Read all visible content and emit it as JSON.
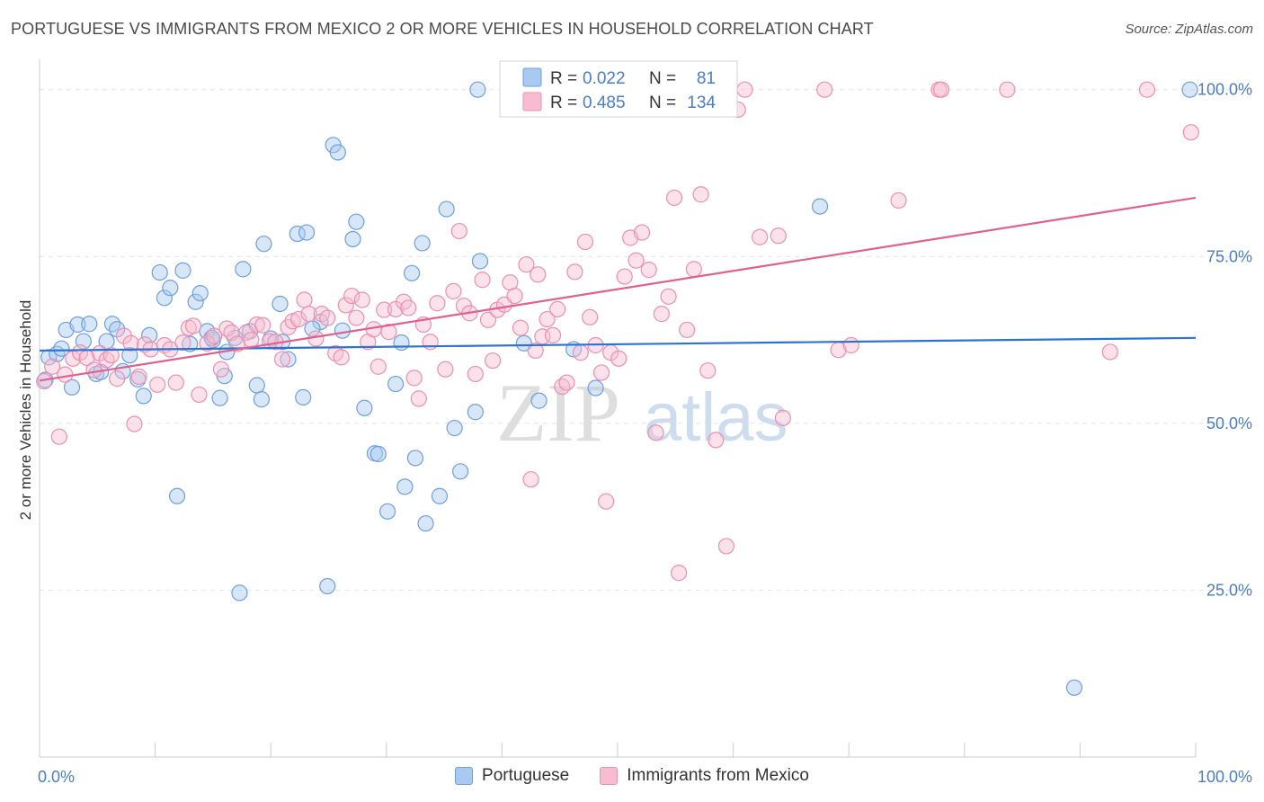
{
  "title": "PORTUGUESE VS IMMIGRANTS FROM MEXICO 2 OR MORE VEHICLES IN HOUSEHOLD CORRELATION CHART",
  "source": "Source: ZipAtlas.com",
  "watermark": {
    "zip": "ZIP",
    "atlas": "atlas"
  },
  "colors": {
    "blue_fill": "#a9c9f0",
    "blue_stroke": "#6f9fdc",
    "blue_line": "#2e72d2",
    "pink_fill": "#f7bcd0",
    "pink_stroke": "#ec8fb0",
    "pink_line": "#e0608f",
    "value_text": "#4a7cc9",
    "grid": "#e2e2e2"
  },
  "stats_legend": [
    {
      "r_label": "R =",
      "r_value": "0.022",
      "n_label": "N =",
      "n_value": "81"
    },
    {
      "r_label": "R =",
      "r_value": "0.485",
      "n_label": "N =",
      "n_value": "134"
    }
  ],
  "chart_data": {
    "type": "scatter",
    "xlabel": "",
    "ylabel": "2 or more Vehicles in Household",
    "xlim": [
      0,
      100
    ],
    "ylim": [
      0,
      104
    ],
    "x_tick_labels": [
      "0.0%",
      "100.0%"
    ],
    "y_ticks": [
      25,
      50,
      75,
      100
    ],
    "y_tick_labels": [
      "25.0%",
      "50.0%",
      "75.0%",
      "100.0%"
    ],
    "grid": true,
    "legend_position": "top-center",
    "series": [
      {
        "name": "Portuguese",
        "color": "blue",
        "trend": [
          [
            0,
            60.9
          ],
          [
            100,
            62.8
          ]
        ],
        "points": [
          [
            0.5,
            56.5
          ],
          [
            0.8,
            59.9
          ],
          [
            1.5,
            60.4
          ],
          [
            1.9,
            61.2
          ],
          [
            2.3,
            64.0
          ],
          [
            2.8,
            55.4
          ],
          [
            3.3,
            64.8
          ],
          [
            3.8,
            62.3
          ],
          [
            4.3,
            64.9
          ],
          [
            4.9,
            57.4
          ],
          [
            5.3,
            57.7
          ],
          [
            5.8,
            62.3
          ],
          [
            6.3,
            64.9
          ],
          [
            6.7,
            64.1
          ],
          [
            7.2,
            57.8
          ],
          [
            7.8,
            60.2
          ],
          [
            8.5,
            56.6
          ],
          [
            9.0,
            54.1
          ],
          [
            9.5,
            63.2
          ],
          [
            10.4,
            72.6
          ],
          [
            10.8,
            68.8
          ],
          [
            11.3,
            70.3
          ],
          [
            11.9,
            39.1
          ],
          [
            12.4,
            72.9
          ],
          [
            13.0,
            61.9
          ],
          [
            13.5,
            68.2
          ],
          [
            13.9,
            69.5
          ],
          [
            14.5,
            63.8
          ],
          [
            15.0,
            62.5
          ],
          [
            15.6,
            53.8
          ],
          [
            16.0,
            57.1
          ],
          [
            16.2,
            60.7
          ],
          [
            16.9,
            62.8
          ],
          [
            17.3,
            24.6
          ],
          [
            17.6,
            73.1
          ],
          [
            18.2,
            63.8
          ],
          [
            18.8,
            55.7
          ],
          [
            19.2,
            53.6
          ],
          [
            19.4,
            76.9
          ],
          [
            20.0,
            62.7
          ],
          [
            20.8,
            67.9
          ],
          [
            21.5,
            59.6
          ],
          [
            22.3,
            78.4
          ],
          [
            22.8,
            53.9
          ],
          [
            23.1,
            78.6
          ],
          [
            24.3,
            65.2
          ],
          [
            24.9,
            25.6
          ],
          [
            25.4,
            91.7
          ],
          [
            25.8,
            90.6
          ],
          [
            26.2,
            63.9
          ],
          [
            27.1,
            77.6
          ],
          [
            27.4,
            80.2
          ],
          [
            28.1,
            52.3
          ],
          [
            29.0,
            45.5
          ],
          [
            30.1,
            36.8
          ],
          [
            30.8,
            55.9
          ],
          [
            31.3,
            62.1
          ],
          [
            31.6,
            40.5
          ],
          [
            32.2,
            72.5
          ],
          [
            32.5,
            44.8
          ],
          [
            33.1,
            77.0
          ],
          [
            33.4,
            35.0
          ],
          [
            34.6,
            39.1
          ],
          [
            35.2,
            82.1
          ],
          [
            35.9,
            49.3
          ],
          [
            36.4,
            42.8
          ],
          [
            37.7,
            51.7
          ],
          [
            38.1,
            74.3
          ],
          [
            37.9,
            100.0
          ],
          [
            41.9,
            62.0
          ],
          [
            43.2,
            53.4
          ],
          [
            45.1,
            100.0
          ],
          [
            46.2,
            61.1
          ],
          [
            48.1,
            55.3
          ],
          [
            67.5,
            82.5
          ],
          [
            89.5,
            10.4
          ],
          [
            99.5,
            100.0
          ],
          [
            23.6,
            64.2
          ],
          [
            21.0,
            62.2
          ],
          [
            14.9,
            62.8
          ],
          [
            29.3,
            45.4
          ]
        ]
      },
      {
        "name": "Immigrants from Mexico",
        "color": "pink",
        "trend": [
          [
            0,
            56.4
          ],
          [
            100,
            83.8
          ]
        ],
        "points": [
          [
            0.4,
            56.3
          ],
          [
            1.1,
            58.5
          ],
          [
            1.7,
            48.0
          ],
          [
            2.2,
            57.3
          ],
          [
            2.9,
            59.7
          ],
          [
            3.5,
            60.6
          ],
          [
            4.1,
            59.8
          ],
          [
            4.7,
            58.0
          ],
          [
            5.2,
            60.5
          ],
          [
            5.8,
            59.5
          ],
          [
            6.2,
            60.2
          ],
          [
            6.7,
            56.7
          ],
          [
            7.3,
            63.1
          ],
          [
            7.9,
            62.0
          ],
          [
            8.2,
            49.9
          ],
          [
            8.6,
            57.0
          ],
          [
            9.1,
            61.8
          ],
          [
            9.6,
            61.1
          ],
          [
            10.2,
            55.8
          ],
          [
            10.8,
            61.7
          ],
          [
            11.3,
            61.1
          ],
          [
            11.8,
            56.1
          ],
          [
            12.4,
            62.1
          ],
          [
            12.9,
            64.3
          ],
          [
            13.3,
            64.6
          ],
          [
            13.8,
            54.3
          ],
          [
            14.5,
            62.0
          ],
          [
            15.1,
            63.1
          ],
          [
            15.7,
            58.1
          ],
          [
            16.2,
            64.2
          ],
          [
            16.6,
            63.6
          ],
          [
            17.1,
            61.9
          ],
          [
            17.9,
            63.6
          ],
          [
            18.3,
            62.5
          ],
          [
            18.8,
            64.8
          ],
          [
            19.3,
            64.7
          ],
          [
            19.9,
            62.3
          ],
          [
            20.4,
            62.2
          ],
          [
            21.0,
            59.6
          ],
          [
            21.5,
            64.4
          ],
          [
            21.9,
            65.3
          ],
          [
            22.4,
            65.6
          ],
          [
            22.9,
            68.5
          ],
          [
            23.3,
            66.4
          ],
          [
            23.9,
            62.7
          ],
          [
            24.4,
            66.4
          ],
          [
            24.9,
            65.8
          ],
          [
            25.6,
            60.5
          ],
          [
            26.1,
            59.9
          ],
          [
            26.5,
            67.7
          ],
          [
            27.0,
            69.1
          ],
          [
            27.4,
            65.8
          ],
          [
            27.9,
            68.5
          ],
          [
            28.4,
            62.2
          ],
          [
            28.9,
            64.1
          ],
          [
            29.3,
            58.5
          ],
          [
            29.8,
            67.0
          ],
          [
            30.2,
            63.7
          ],
          [
            30.8,
            67.1
          ],
          [
            31.5,
            68.2
          ],
          [
            31.9,
            67.3
          ],
          [
            32.4,
            56.8
          ],
          [
            32.8,
            53.7
          ],
          [
            33.2,
            64.8
          ],
          [
            33.8,
            62.2
          ],
          [
            34.4,
            68.0
          ],
          [
            35.1,
            58.1
          ],
          [
            35.8,
            69.8
          ],
          [
            36.3,
            78.8
          ],
          [
            36.7,
            67.6
          ],
          [
            37.2,
            66.5
          ],
          [
            37.7,
            57.4
          ],
          [
            38.3,
            71.5
          ],
          [
            38.8,
            65.5
          ],
          [
            39.2,
            59.4
          ],
          [
            39.6,
            67.0
          ],
          [
            40.2,
            67.8
          ],
          [
            40.7,
            71.1
          ],
          [
            41.1,
            69.1
          ],
          [
            41.6,
            64.3
          ],
          [
            42.1,
            73.8
          ],
          [
            42.5,
            41.6
          ],
          [
            43.1,
            72.3
          ],
          [
            43.5,
            63.0
          ],
          [
            43.9,
            65.6
          ],
          [
            44.4,
            63.2
          ],
          [
            44.8,
            67.1
          ],
          [
            45.2,
            55.5
          ],
          [
            45.6,
            56.1
          ],
          [
            46.3,
            72.7
          ],
          [
            46.8,
            60.6
          ],
          [
            47.2,
            77.2
          ],
          [
            47.6,
            65.9
          ],
          [
            48.1,
            61.7
          ],
          [
            48.6,
            57.6
          ],
          [
            49.0,
            38.3
          ],
          [
            49.4,
            60.6
          ],
          [
            50.1,
            59.7
          ],
          [
            50.6,
            72.0
          ],
          [
            51.1,
            77.8
          ],
          [
            51.6,
            74.4
          ],
          [
            52.1,
            78.6
          ],
          [
            52.7,
            73.0
          ],
          [
            53.3,
            48.6
          ],
          [
            53.8,
            66.4
          ],
          [
            54.4,
            69.0
          ],
          [
            54.9,
            83.8
          ],
          [
            55.3,
            27.6
          ],
          [
            56.0,
            64.0
          ],
          [
            56.6,
            73.1
          ],
          [
            57.2,
            84.3
          ],
          [
            57.8,
            57.9
          ],
          [
            58.5,
            47.5
          ],
          [
            59.4,
            31.6
          ],
          [
            60.4,
            97.0
          ],
          [
            61.0,
            100.0
          ],
          [
            62.3,
            77.9
          ],
          [
            63.9,
            78.1
          ],
          [
            64.3,
            50.8
          ],
          [
            67.9,
            100.0
          ],
          [
            69.1,
            61.0
          ],
          [
            70.2,
            61.7
          ],
          [
            74.3,
            83.4
          ],
          [
            77.8,
            100.0
          ],
          [
            78.0,
            100.0
          ],
          [
            83.7,
            100.0
          ],
          [
            92.6,
            60.7
          ],
          [
            95.8,
            100.0
          ],
          [
            99.6,
            93.6
          ],
          [
            56.1,
            100.0
          ],
          [
            55.8,
            100.0
          ],
          [
            46.0,
            100.0
          ],
          [
            42.9,
            60.9
          ]
        ]
      }
    ]
  }
}
